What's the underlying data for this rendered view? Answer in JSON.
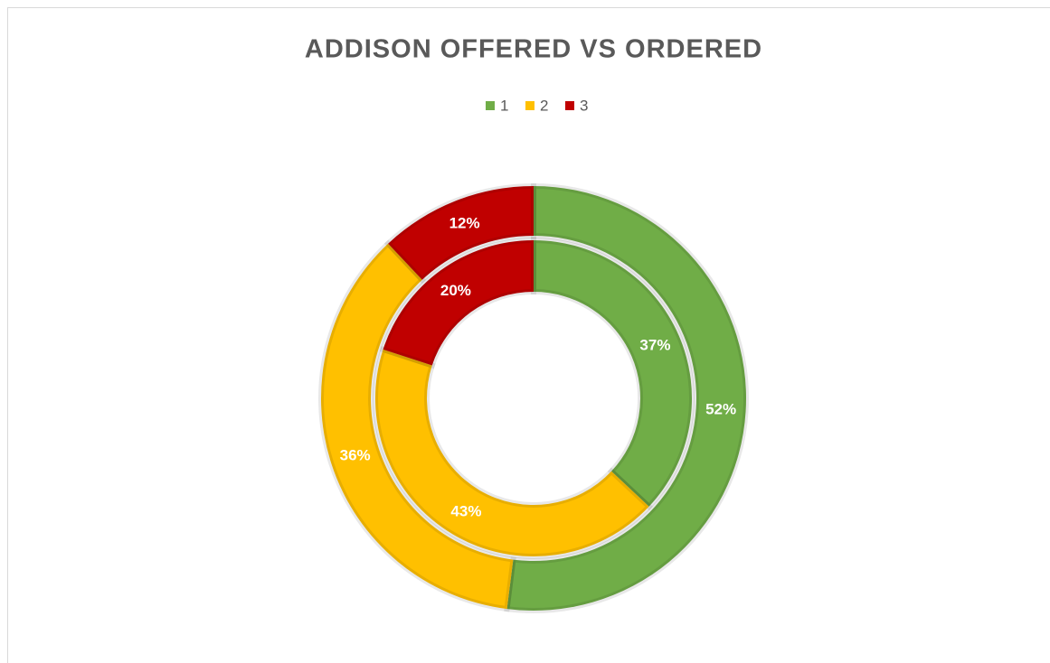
{
  "chart_data": {
    "type": "doughnut",
    "title": "ADDISON OFFERED VS ORDERED",
    "categories": [
      "1",
      "2",
      "3"
    ],
    "colors": [
      "#70ad47",
      "#ffc000",
      "#c00000"
    ],
    "series": [
      {
        "values": [
          52,
          36,
          12
        ],
        "value_labels": [
          "52%",
          "36%",
          "12%"
        ]
      },
      {
        "values": [
          37,
          43,
          20
        ],
        "value_labels": [
          "37%",
          "43%",
          "20%"
        ]
      }
    ],
    "legend": "top"
  }
}
